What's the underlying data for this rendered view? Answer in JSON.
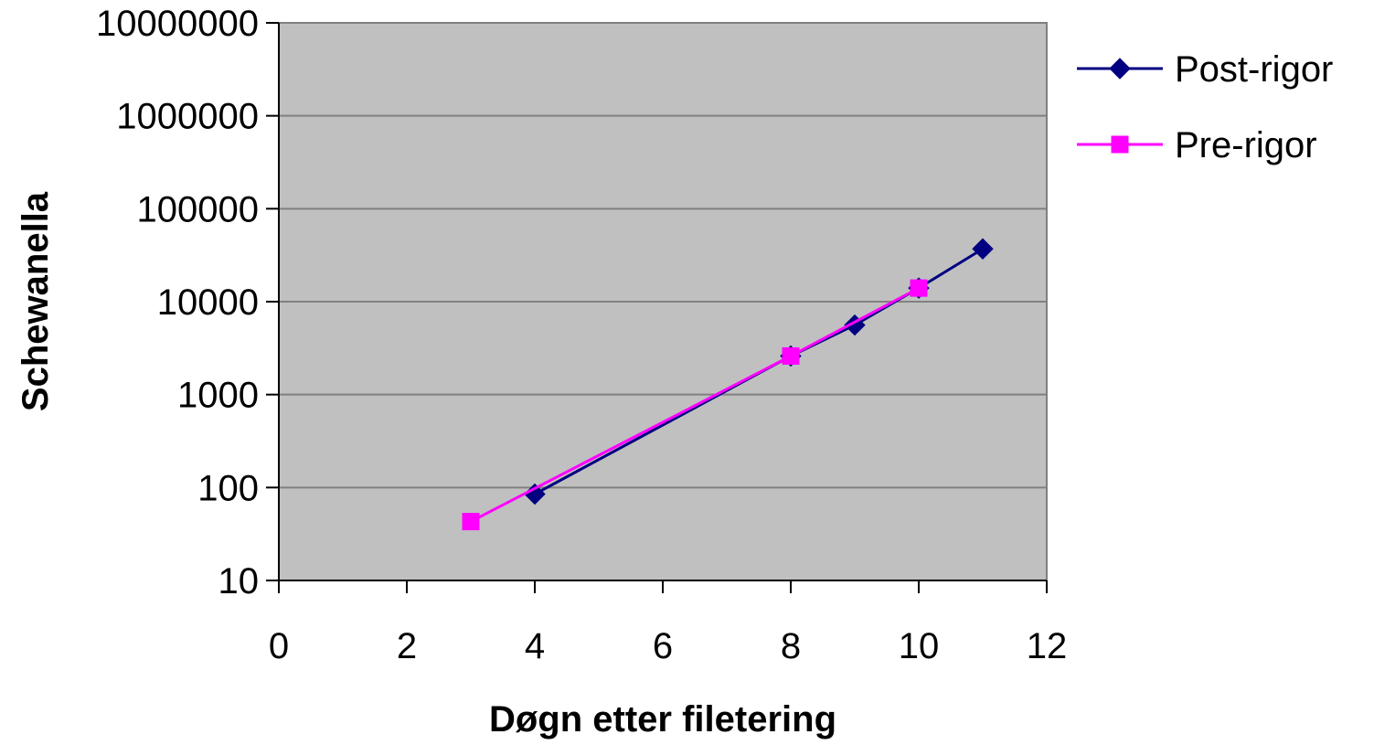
{
  "chart_data": {
    "type": "line",
    "title": "",
    "xlabel": "Døgn etter filetering",
    "ylabel": "Schewanella",
    "xlim": [
      0,
      12
    ],
    "ylim": [
      10,
      10000000
    ],
    "yscale": "log",
    "x_ticks": [
      "0",
      "2",
      "4",
      "6",
      "8",
      "10",
      "12"
    ],
    "y_ticks": [
      "10",
      "100",
      "1000",
      "10000",
      "100000",
      "1000000",
      "10000000"
    ],
    "grid": "horizontal",
    "plot_background": "#c0c0c0",
    "legend_position": "right",
    "series": [
      {
        "name": "Post-rigor",
        "color": "#000080",
        "marker": "diamond",
        "x": [
          4,
          8,
          9,
          10,
          11
        ],
        "y": [
          85,
          2600,
          5600,
          14000,
          37000
        ]
      },
      {
        "name": "Pre-rigor",
        "color": "#ff00ff",
        "marker": "square",
        "x": [
          3,
          8,
          10
        ],
        "y": [
          43,
          2600,
          14000
        ]
      }
    ]
  }
}
